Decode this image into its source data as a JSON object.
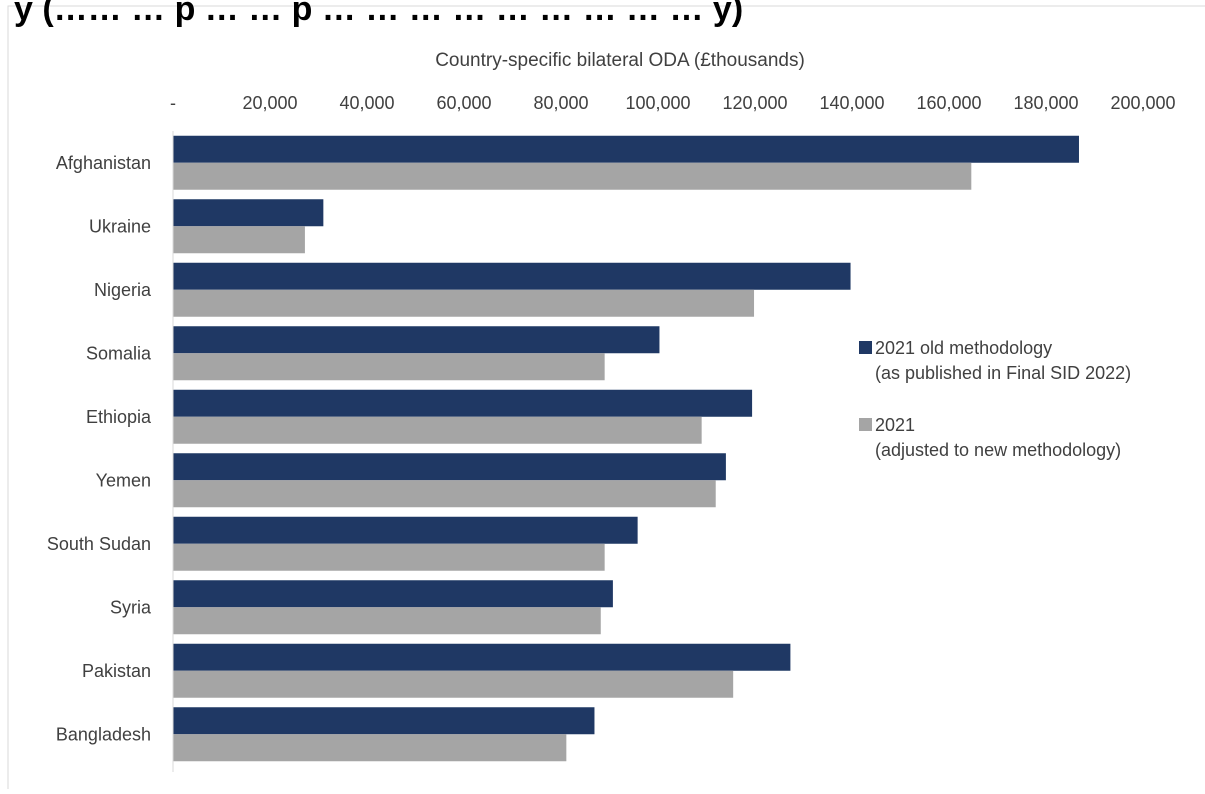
{
  "chart_data": {
    "type": "bar",
    "orientation": "horizontal",
    "title_fragment": "y (…… … p … … p … … … … … … … … … y)",
    "xlabel": "Country-specific bilateral ODA (£thousands)",
    "ylabel": "",
    "x_axis_position": "top",
    "xlim": [
      0,
      200000
    ],
    "x_ticks": [
      0,
      20000,
      40000,
      60000,
      80000,
      100000,
      120000,
      140000,
      160000,
      180000,
      200000
    ],
    "x_tick_labels": [
      "-",
      "20,000",
      "40,000",
      "60,000",
      "80,000",
      "100,000",
      "120,000",
      "140,000",
      "160,000",
      "180,000",
      "200,000"
    ],
    "grid": false,
    "legend_position": "right",
    "categories": [
      "Afghanistan",
      "Ukraine",
      "Nigeria",
      "Somalia",
      "Ethiopia",
      "Yemen",
      "South Sudan",
      "Syria",
      "Pakistan",
      "Bangladesh"
    ],
    "series": [
      {
        "name": "2021 old methodology (as published in Final SID 2022)",
        "legend_lines": [
          "2021 old methodology",
          "(as published in Final SID 2022)"
        ],
        "color": "#1F3864",
        "values": [
          186800,
          31000,
          139700,
          100300,
          119400,
          114000,
          95800,
          90700,
          127300,
          86900
        ]
      },
      {
        "name": "2021 (adjusted to new methodology)",
        "legend_lines": [
          "2021",
          "(adjusted to new methodology)"
        ],
        "color": "#A5A5A5",
        "values": [
          164600,
          27200,
          119800,
          89000,
          109000,
          111900,
          89000,
          88200,
          115500,
          81100
        ]
      }
    ]
  }
}
